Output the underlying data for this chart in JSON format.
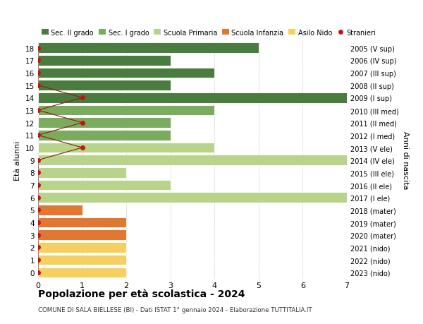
{
  "ages": [
    18,
    17,
    16,
    15,
    14,
    13,
    12,
    11,
    10,
    9,
    8,
    7,
    6,
    5,
    4,
    3,
    2,
    1,
    0
  ],
  "years": [
    "2005 (V sup)",
    "2006 (IV sup)",
    "2007 (III sup)",
    "2008 (II sup)",
    "2009 (I sup)",
    "2010 (III med)",
    "2011 (II med)",
    "2012 (I med)",
    "2013 (V ele)",
    "2014 (IV ele)",
    "2015 (III ele)",
    "2016 (II ele)",
    "2017 (I ele)",
    "2018 (mater)",
    "2019 (mater)",
    "2020 (mater)",
    "2021 (nido)",
    "2022 (nido)",
    "2023 (nido)"
  ],
  "bar_values": [
    5,
    3,
    4,
    3,
    7,
    4,
    3,
    3,
    4,
    7,
    2,
    3,
    7,
    1,
    2,
    2,
    2,
    2,
    2
  ],
  "bar_colors": [
    "#4a7c40",
    "#4a7c40",
    "#4a7c40",
    "#4a7c40",
    "#4a7c40",
    "#7aab5e",
    "#7aab5e",
    "#7aab5e",
    "#b8d48a",
    "#b8d48a",
    "#b8d48a",
    "#b8d48a",
    "#b8d48a",
    "#e07832",
    "#e07832",
    "#e07832",
    "#f5d060",
    "#f5d060",
    "#f5d060"
  ],
  "stranieri_x": [
    0,
    0,
    0,
    0,
    1,
    0,
    1,
    0,
    1,
    0,
    0,
    0,
    0,
    0,
    0,
    0,
    0,
    0,
    0
  ],
  "legend_labels": [
    "Sec. II grado",
    "Sec. I grado",
    "Scuola Primaria",
    "Scuola Infanzia",
    "Asilo Nido",
    "Stranieri"
  ],
  "legend_colors": [
    "#4a7c40",
    "#7aab5e",
    "#b8d48a",
    "#e07832",
    "#f5d060",
    "#cc1111"
  ],
  "title": "Popolazione per età scolastica - 2024",
  "subtitle": "COMUNE DI SALA BIELLESE (BI) - Dati ISTAT 1° gennaio 2024 - Elaborazione TUTTITALIA.IT",
  "ylabel": "Età alunni",
  "ylabel2": "Anni di nascita",
  "xlim": [
    0,
    7
  ],
  "background_color": "#ffffff",
  "grid_color": "#cccccc"
}
